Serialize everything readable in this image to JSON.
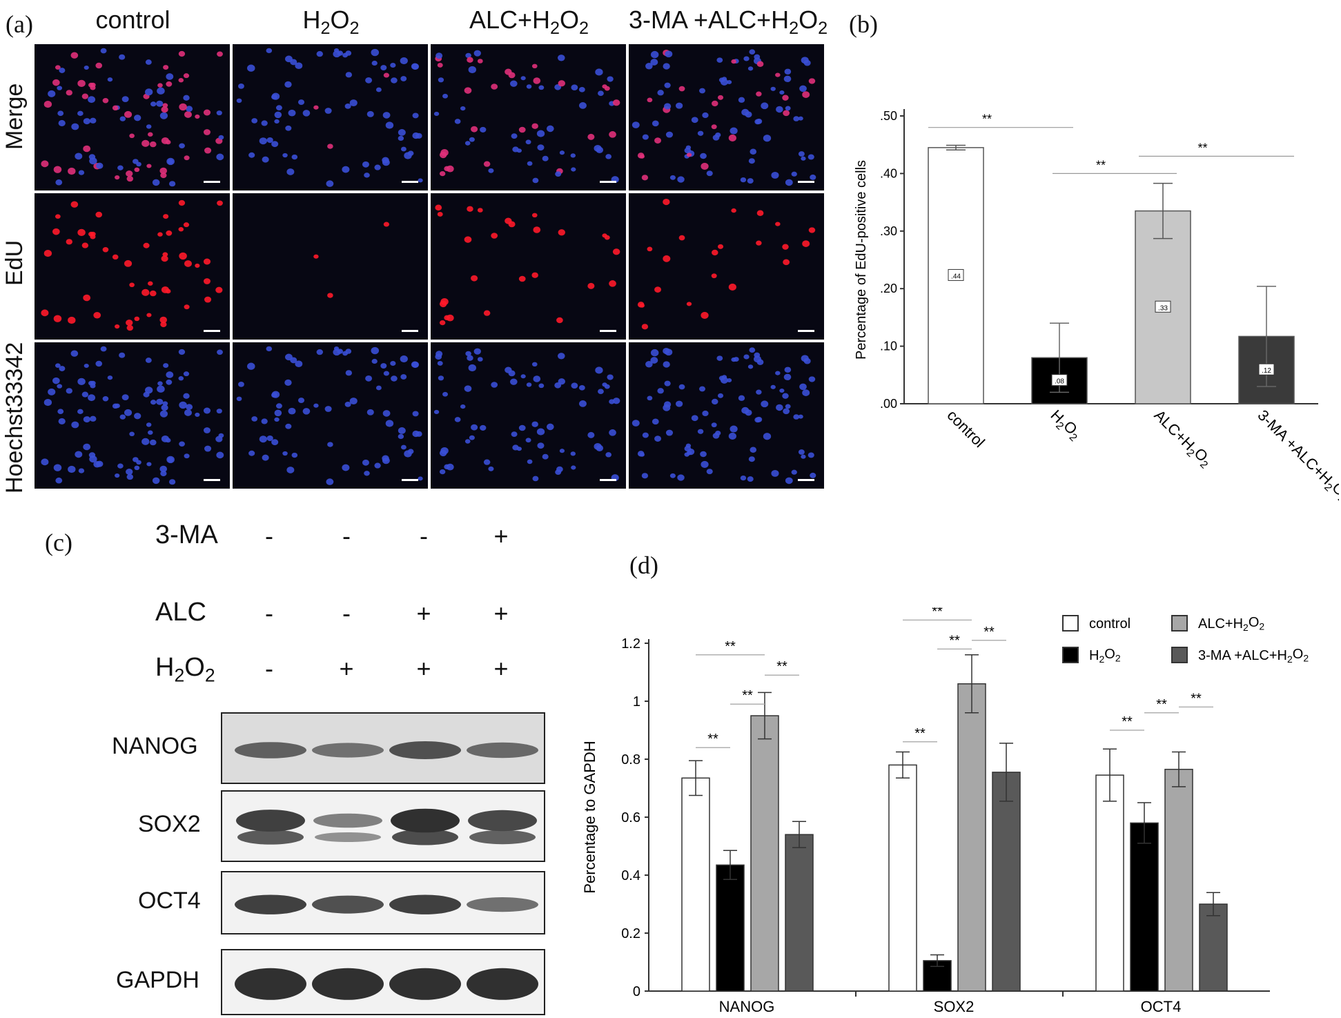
{
  "panel_letters": {
    "a": "(a)",
    "b": "(b)",
    "c": "(c)",
    "d": "(d)"
  },
  "groups": [
    {
      "base": "control",
      "sub": ""
    },
    {
      "base": "H",
      "sub": "2",
      "mid": "O",
      "sub2": "2",
      "pre": ""
    },
    {
      "base": "H",
      "sub": "2",
      "mid": "O",
      "sub2": "2",
      "pre": "ALC+"
    },
    {
      "base": "H",
      "sub": "2",
      "mid": "O",
      "sub2": "2",
      "pre": "3-MA +ALC+"
    }
  ],
  "microscopy": {
    "rows": [
      "Merge",
      "EdU",
      "Hoechst33342"
    ],
    "columns": [
      "control",
      "H2O2",
      "ALC+H2O2",
      "3-MA +ALC+H2O2"
    ],
    "colors": {
      "background": "#070713",
      "nucleus_blue": "#3a4fd6",
      "edu_red": "#ff1a2a",
      "merge_pink": "#e0307a"
    }
  },
  "western_blot": {
    "treatments": [
      {
        "label": "3-MA",
        "signs": [
          "-",
          "-",
          "-",
          "+"
        ]
      },
      {
        "label": "ALC",
        "signs": [
          "-",
          "-",
          "+",
          "+"
        ]
      },
      {
        "label": "H2O2",
        "label_base": "H",
        "label_sub": "2",
        "label_mid": "O",
        "label_sub2": "2",
        "signs": [
          "-",
          "+",
          "+",
          "+"
        ]
      }
    ],
    "proteins": [
      "NANOG",
      "SOX2",
      "OCT4",
      "GAPDH"
    ],
    "band_intensity": {
      "NANOG": [
        0.65,
        0.55,
        0.75,
        0.6
      ],
      "SOX2": [
        0.85,
        0.45,
        0.95,
        0.8
      ],
      "OCT4": [
        0.85,
        0.75,
        0.85,
        0.55
      ],
      "GAPDH": [
        0.95,
        0.95,
        0.95,
        0.95
      ]
    }
  },
  "chart_data": [
    {
      "type": "bar",
      "ylabel": "Percentage of EdU-positive cells",
      "ylim": [
        0,
        0.5
      ],
      "yticks": [
        ".00",
        ".10",
        ".20",
        ".30",
        ".40",
        ".50"
      ],
      "categories": [
        "control",
        "H2O2",
        "ALC+H2O2",
        "3-MA +ALC+H2O2"
      ],
      "values": [
        0.445,
        0.08,
        0.335,
        0.117
      ],
      "errors": [
        0.004,
        0.06,
        0.048,
        0.087
      ],
      "value_labels": [
        ".44",
        ".08",
        ".33",
        ".12"
      ],
      "bar_colors": [
        "#ffffff",
        "#000000",
        "#c7c7c7",
        "#3a3a3a"
      ],
      "significance": [
        {
          "from": 0,
          "to": 1,
          "text": "**"
        },
        {
          "from": 1,
          "to": 2,
          "text": "**"
        },
        {
          "from": 2,
          "to": 3,
          "text": "**"
        }
      ]
    },
    {
      "type": "bar",
      "ylabel": "Percentage to GAPDH",
      "ylim": [
        0,
        1.2
      ],
      "yticks": [
        "0",
        "0.2",
        "0.4",
        "0.6",
        "0.8",
        "1",
        "1.2"
      ],
      "categories": [
        "NANOG",
        "SOX2",
        "OCT4"
      ],
      "series": [
        {
          "name": "control",
          "values": [
            0.735,
            0.78,
            0.745
          ],
          "errors": [
            0.06,
            0.045,
            0.09
          ],
          "color": "#ffffff"
        },
        {
          "name": "H2O2",
          "values": [
            0.435,
            0.105,
            0.58
          ],
          "errors": [
            0.05,
            0.02,
            0.07
          ],
          "color": "#000000"
        },
        {
          "name": "ALC+H2O2",
          "values": [
            0.95,
            1.06,
            0.765
          ],
          "errors": [
            0.08,
            0.1,
            0.06
          ],
          "color": "#a7a7a7"
        },
        {
          "name": "3-MA +ALC+H2O2",
          "values": [
            0.54,
            0.755,
            0.3
          ],
          "errors": [
            0.045,
            0.1,
            0.04
          ],
          "color": "#595959"
        }
      ],
      "significance": [
        {
          "cat": 0,
          "from": 0,
          "to": 1,
          "level": 0,
          "text": "**"
        },
        {
          "cat": 0,
          "from": 1,
          "to": 2,
          "level": 1,
          "text": "**"
        },
        {
          "cat": 0,
          "from": 2,
          "to": 3,
          "level": 2,
          "text": "**"
        },
        {
          "cat": 0,
          "from": 0,
          "to": 2,
          "level": 3,
          "text": "**"
        },
        {
          "cat": 1,
          "from": 0,
          "to": 1,
          "level": 0,
          "text": "**"
        },
        {
          "cat": 1,
          "from": 1,
          "to": 2,
          "level": 1,
          "text": "**"
        },
        {
          "cat": 1,
          "from": 2,
          "to": 3,
          "level": 2,
          "text": "**"
        },
        {
          "cat": 1,
          "from": 0,
          "to": 2,
          "level": 3,
          "text": "**"
        },
        {
          "cat": 2,
          "from": 0,
          "to": 1,
          "level": 0,
          "text": "**"
        },
        {
          "cat": 2,
          "from": 1,
          "to": 2,
          "level": 1,
          "text": "**"
        },
        {
          "cat": 2,
          "from": 2,
          "to": 3,
          "level": 2,
          "text": "**"
        }
      ],
      "legend_position": "top-right"
    }
  ]
}
